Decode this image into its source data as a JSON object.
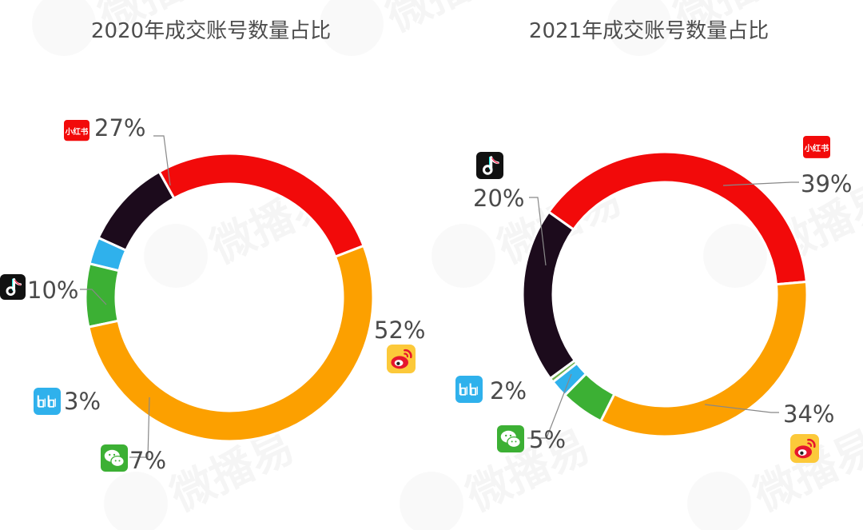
{
  "colors": {
    "xiaohongshu": "#f20a0a",
    "weibo": "#fca000",
    "douyin": "#1c0b1c",
    "bilibili": "#2fb1ec",
    "wechat": "#3cb034",
    "other": "#6fb24e",
    "title": "#4d4d4d",
    "label": "#4a4a4a",
    "leader": "#888888"
  },
  "watermark": "微播易",
  "chart_data": [
    {
      "type": "pie",
      "variant": "donut",
      "title": "2020年成交账号数量占比",
      "start_angle_deg": 21,
      "direction": "counterclockwise",
      "slices": [
        {
          "key": "xiaohongshu",
          "icon": "xiaohongshu-icon",
          "value": 27,
          "label": "27%"
        },
        {
          "key": "douyin",
          "icon": "douyin-icon",
          "value": 10,
          "label": "10%"
        },
        {
          "key": "bilibili",
          "icon": "bilibili-icon",
          "value": 3,
          "label": "3%"
        },
        {
          "key": "wechat",
          "icon": "wechat-icon",
          "value": 7,
          "label": "7%"
        },
        {
          "key": "weibo",
          "icon": "weibo-icon",
          "value": 52,
          "label": "52%"
        }
      ]
    },
    {
      "type": "pie",
      "variant": "donut",
      "title": "2021年成交账号数量占比",
      "start_angle_deg": 5,
      "direction": "counterclockwise",
      "slices": [
        {
          "key": "xiaohongshu",
          "icon": "xiaohongshu-icon",
          "value": 39,
          "label": "39%"
        },
        {
          "key": "douyin",
          "icon": "douyin-icon",
          "value": 20,
          "label": "20%"
        },
        {
          "key": "other",
          "icon": null,
          "value": 0.5,
          "label": ""
        },
        {
          "key": "bilibili",
          "icon": "bilibili-icon",
          "value": 2,
          "label": "2%"
        },
        {
          "key": "wechat",
          "icon": "wechat-icon",
          "value": 5,
          "label": "5%"
        },
        {
          "key": "weibo",
          "icon": "weibo-icon",
          "value": 34,
          "label": "34%"
        }
      ]
    }
  ]
}
